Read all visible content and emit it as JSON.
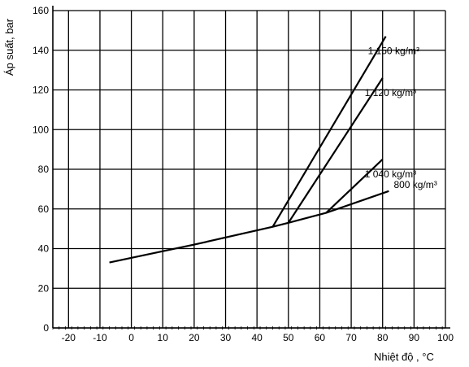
{
  "chart_data": {
    "type": "line",
    "title": "",
    "xlabel": "Nhiệt độ , °C",
    "ylabel": "Áp suất, bar",
    "xlim": [
      -25,
      100
    ],
    "ylim": [
      0,
      160
    ],
    "x_ticks": [
      "-20",
      "-10",
      "0",
      "10",
      "20",
      "30",
      "40",
      "50",
      "60",
      "70",
      "80",
      "90",
      "100"
    ],
    "y_ticks": [
      "0",
      "20",
      "40",
      "60",
      "80",
      "100",
      "120",
      "140",
      "160"
    ],
    "grid": true,
    "series": [
      {
        "name": "800 kg/m³",
        "points": [
          [
            -7,
            33
          ],
          [
            20,
            42
          ],
          [
            45,
            51
          ],
          [
            50,
            53
          ],
          [
            62,
            58
          ],
          [
            82,
            69
          ]
        ]
      },
      {
        "name": "1 040 kg/m³",
        "points": [
          [
            62,
            58
          ],
          [
            80,
            85
          ]
        ]
      },
      {
        "name": "1 120 kg/m³",
        "points": [
          [
            50,
            53
          ],
          [
            80,
            126
          ]
        ]
      },
      {
        "name": "1 150 kg/m³",
        "points": [
          [
            45,
            51
          ],
          [
            81,
            147
          ]
        ]
      }
    ]
  }
}
